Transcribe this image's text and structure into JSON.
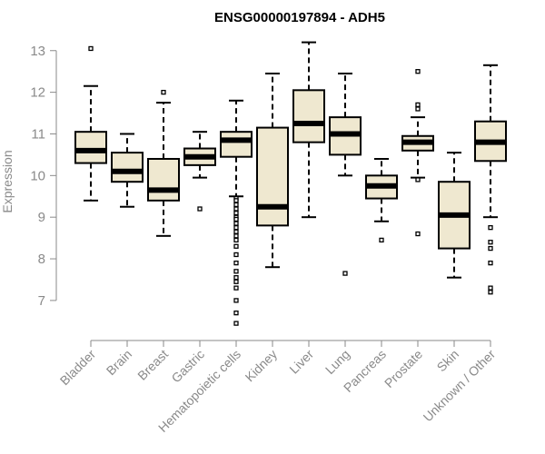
{
  "chart_data": {
    "type": "boxplot",
    "title": "ENSG00000197894 - ADH5",
    "xlabel": "",
    "ylabel": "Expression",
    "ylim": [
      6.3,
      13.3
    ],
    "yticks": [
      7,
      8,
      9,
      10,
      11,
      12,
      13
    ],
    "box_color": "#efe8d0",
    "categories": [
      "Bladder",
      "Brain",
      "Breast",
      "Gastric",
      "Hematopoietic cells",
      "Kidney",
      "Liver",
      "Lung",
      "Pancreas",
      "Prostate",
      "Skin",
      "Unknown / Other"
    ],
    "boxes": [
      {
        "min": 9.4,
        "q1": 10.3,
        "median": 10.6,
        "q3": 11.05,
        "max": 12.15,
        "outliers": [
          13.05
        ]
      },
      {
        "min": 9.25,
        "q1": 9.85,
        "median": 10.1,
        "q3": 10.55,
        "max": 11.0,
        "outliers": []
      },
      {
        "min": 8.55,
        "q1": 9.4,
        "median": 9.65,
        "q3": 10.4,
        "max": 11.75,
        "outliers": [
          12.0
        ]
      },
      {
        "min": 9.95,
        "q1": 10.25,
        "median": 10.45,
        "q3": 10.65,
        "max": 11.05,
        "outliers": [
          9.2
        ]
      },
      {
        "min": 9.5,
        "q1": 10.45,
        "median": 10.85,
        "q3": 11.05,
        "max": 11.8,
        "outliers": [
          9.45,
          9.4,
          9.3,
          9.2,
          9.1,
          9.0,
          8.95,
          8.85,
          8.75,
          8.65,
          8.55,
          8.45,
          8.3,
          8.1,
          7.9,
          7.7,
          7.55,
          7.45,
          7.3,
          7.0,
          6.7,
          6.45
        ]
      },
      {
        "min": 7.8,
        "q1": 8.8,
        "median": 9.25,
        "q3": 11.15,
        "max": 12.45,
        "outliers": []
      },
      {
        "min": 9.0,
        "q1": 10.8,
        "median": 11.25,
        "q3": 12.05,
        "max": 13.2,
        "outliers": []
      },
      {
        "min": 10.0,
        "q1": 10.5,
        "median": 11.0,
        "q3": 11.4,
        "max": 12.45,
        "outliers": [
          7.65
        ]
      },
      {
        "min": 8.9,
        "q1": 9.45,
        "median": 9.75,
        "q3": 10.0,
        "max": 10.4,
        "outliers": [
          8.45
        ]
      },
      {
        "min": 9.95,
        "q1": 10.6,
        "median": 10.8,
        "q3": 10.95,
        "max": 11.4,
        "outliers": [
          12.5,
          11.7,
          11.6,
          9.9,
          8.6
        ]
      },
      {
        "min": 7.55,
        "q1": 8.25,
        "median": 9.05,
        "q3": 9.85,
        "max": 10.55,
        "outliers": []
      },
      {
        "min": 9.0,
        "q1": 10.35,
        "median": 10.8,
        "q3": 11.3,
        "max": 12.65,
        "outliers": [
          8.75,
          8.4,
          8.25,
          7.9,
          7.3,
          7.2
        ]
      }
    ]
  }
}
